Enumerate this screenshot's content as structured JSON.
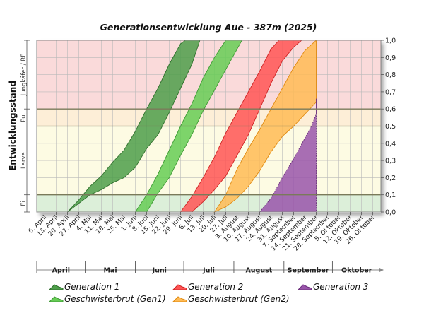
{
  "chart_data": {
    "type": "area",
    "title": "Generationsentwicklung Aue - 387m (2025)",
    "ylabel": "Entwicklungsstand",
    "ylim": [
      0,
      1
    ],
    "y_ticks": [
      "0,0",
      "0,1",
      "0,2",
      "0,3",
      "0,4",
      "0,5",
      "0,6",
      "0,7",
      "0,8",
      "0,9",
      "1,0"
    ],
    "stages": [
      {
        "label": "Ei",
        "from": 0,
        "to": 0.1,
        "color": "#dcefd9"
      },
      {
        "label": "Larve",
        "from": 0.1,
        "to": 0.5,
        "color": "#fdfbe3"
      },
      {
        "label": "Pu.",
        "from": 0.5,
        "to": 0.6,
        "color": "#fdeed7"
      },
      {
        "label": "Jungkäfer / RF",
        "from": 0.6,
        "to": 1.0,
        "color": "#fadada"
      }
    ],
    "x_range": [
      "2025-04-01",
      "2025-10-31"
    ],
    "x_ticks": [
      {
        "date": "2025-04-06",
        "label": "6. April"
      },
      {
        "date": "2025-04-13",
        "label": "13. April"
      },
      {
        "date": "2025-04-20",
        "label": "20. April"
      },
      {
        "date": "2025-04-27",
        "label": "27. April"
      },
      {
        "date": "2025-05-04",
        "label": "4. Mai"
      },
      {
        "date": "2025-05-11",
        "label": "11. Mai"
      },
      {
        "date": "2025-05-18",
        "label": "18. Mai"
      },
      {
        "date": "2025-05-25",
        "label": "25. Mai"
      },
      {
        "date": "2025-06-01",
        "label": "1. Juni"
      },
      {
        "date": "2025-06-08",
        "label": "8. Juni"
      },
      {
        "date": "2025-06-15",
        "label": "15. Juni"
      },
      {
        "date": "2025-06-22",
        "label": "22. Juni"
      },
      {
        "date": "2025-06-29",
        "label": "29. Juni"
      },
      {
        "date": "2025-07-06",
        "label": "6. Juli"
      },
      {
        "date": "2025-07-13",
        "label": "13. Juli"
      },
      {
        "date": "2025-07-20",
        "label": "20. Juli"
      },
      {
        "date": "2025-07-27",
        "label": "27. Juli"
      },
      {
        "date": "2025-08-03",
        "label": "3. August"
      },
      {
        "date": "2025-08-10",
        "label": "10. August"
      },
      {
        "date": "2025-08-17",
        "label": "17. August"
      },
      {
        "date": "2025-08-24",
        "label": "24. August"
      },
      {
        "date": "2025-08-31",
        "label": "31. August"
      },
      {
        "date": "2025-09-07",
        "label": "7. September"
      },
      {
        "date": "2025-09-14",
        "label": "14. September"
      },
      {
        "date": "2025-09-21",
        "label": "21. September"
      },
      {
        "date": "2025-09-28",
        "label": "28. September"
      },
      {
        "date": "2025-10-05",
        "label": "5. Oktober"
      },
      {
        "date": "2025-10-12",
        "label": "12. Oktober"
      },
      {
        "date": "2025-10-19",
        "label": "19. Oktober"
      },
      {
        "date": "2025-10-26",
        "label": "26. Oktober"
      }
    ],
    "months": [
      {
        "label": "April",
        "start": "2025-04-01",
        "end": "2025-05-01"
      },
      {
        "label": "Mai",
        "start": "2025-05-01",
        "end": "2025-06-01"
      },
      {
        "label": "Juni",
        "start": "2025-06-01",
        "end": "2025-07-01"
      },
      {
        "label": "Juli",
        "start": "2025-07-01",
        "end": "2025-08-01"
      },
      {
        "label": "August",
        "start": "2025-08-01",
        "end": "2025-09-01"
      },
      {
        "label": "September",
        "start": "2025-09-01",
        "end": "2025-10-01"
      },
      {
        "label": "Oktober",
        "start": "2025-10-01",
        "end": "2025-11-01"
      }
    ],
    "series": [
      {
        "name": "Generation 1",
        "color": "#4e9e4a",
        "stroke": "#2f6e2c",
        "lower": [
          [
            "2025-04-20",
            0
          ],
          [
            "2025-04-27",
            0.05
          ],
          [
            "2025-05-04",
            0.1
          ],
          [
            "2025-05-11",
            0.13
          ],
          [
            "2025-05-18",
            0.17
          ],
          [
            "2025-05-25",
            0.2
          ],
          [
            "2025-06-01",
            0.26
          ],
          [
            "2025-06-08",
            0.37
          ],
          [
            "2025-06-15",
            0.45
          ],
          [
            "2025-06-22",
            0.58
          ],
          [
            "2025-06-29",
            0.72
          ],
          [
            "2025-07-06",
            0.86
          ],
          [
            "2025-07-11",
            1.0
          ]
        ],
        "upper": [
          [
            "2025-04-20",
            0
          ],
          [
            "2025-04-27",
            0.07
          ],
          [
            "2025-05-04",
            0.15
          ],
          [
            "2025-05-11",
            0.21
          ],
          [
            "2025-05-18",
            0.29
          ],
          [
            "2025-05-25",
            0.36
          ],
          [
            "2025-06-01",
            0.47
          ],
          [
            "2025-06-08",
            0.6
          ],
          [
            "2025-06-15",
            0.72
          ],
          [
            "2025-06-22",
            0.86
          ],
          [
            "2025-06-29",
            0.98
          ],
          [
            "2025-07-02",
            1.0
          ]
        ]
      },
      {
        "name": "Geschwisterbrut (Gen1)",
        "color": "#66cc55",
        "stroke": "#3f9a35",
        "lower": [
          [
            "2025-06-08",
            0
          ],
          [
            "2025-06-15",
            0.11
          ],
          [
            "2025-06-22",
            0.2
          ],
          [
            "2025-06-29",
            0.33
          ],
          [
            "2025-07-06",
            0.45
          ],
          [
            "2025-07-13",
            0.59
          ],
          [
            "2025-07-20",
            0.71
          ],
          [
            "2025-07-27",
            0.83
          ],
          [
            "2025-08-06",
            1.0
          ]
        ],
        "upper": [
          [
            "2025-06-01",
            0
          ],
          [
            "2025-06-08",
            0.1
          ],
          [
            "2025-06-15",
            0.22
          ],
          [
            "2025-06-22",
            0.36
          ],
          [
            "2025-06-29",
            0.5
          ],
          [
            "2025-07-06",
            0.63
          ],
          [
            "2025-07-13",
            0.78
          ],
          [
            "2025-07-20",
            0.9
          ],
          [
            "2025-07-27",
            1.0
          ]
        ]
      },
      {
        "name": "Generation 2",
        "color": "#ff5555",
        "stroke": "#cc2222",
        "lower": [
          [
            "2025-07-06",
            0
          ],
          [
            "2025-07-13",
            0.06
          ],
          [
            "2025-07-20",
            0.13
          ],
          [
            "2025-07-27",
            0.21
          ],
          [
            "2025-08-03",
            0.33
          ],
          [
            "2025-08-10",
            0.45
          ],
          [
            "2025-08-17",
            0.6
          ],
          [
            "2025-08-24",
            0.75
          ],
          [
            "2025-08-31",
            0.88
          ],
          [
            "2025-09-07",
            0.96
          ],
          [
            "2025-09-12",
            1.0
          ]
        ],
        "upper": [
          [
            "2025-06-29",
            0
          ],
          [
            "2025-07-06",
            0.09
          ],
          [
            "2025-07-13",
            0.2
          ],
          [
            "2025-07-20",
            0.32
          ],
          [
            "2025-07-27",
            0.46
          ],
          [
            "2025-08-03",
            0.58
          ],
          [
            "2025-08-10",
            0.7
          ],
          [
            "2025-08-17",
            0.82
          ],
          [
            "2025-08-24",
            0.95
          ],
          [
            "2025-08-29",
            1.0
          ]
        ]
      },
      {
        "name": "Geschwisterbrut (Gen2)",
        "color": "#ffbb55",
        "stroke": "#e08a10",
        "lower": [
          [
            "2025-07-20",
            0
          ],
          [
            "2025-07-27",
            0.03
          ],
          [
            "2025-08-03",
            0.08
          ],
          [
            "2025-08-10",
            0.15
          ],
          [
            "2025-08-17",
            0.24
          ],
          [
            "2025-08-24",
            0.35
          ],
          [
            "2025-08-31",
            0.44
          ],
          [
            "2025-09-07",
            0.5
          ],
          [
            "2025-09-14",
            0.57
          ],
          [
            "2025-09-21",
            0.64
          ]
        ],
        "upper": [
          [
            "2025-07-20",
            0
          ],
          [
            "2025-07-27",
            0.1
          ],
          [
            "2025-08-03",
            0.25
          ],
          [
            "2025-08-10",
            0.37
          ],
          [
            "2025-08-17",
            0.48
          ],
          [
            "2025-08-24",
            0.6
          ],
          [
            "2025-08-31",
            0.72
          ],
          [
            "2025-09-07",
            0.84
          ],
          [
            "2025-09-14",
            0.94
          ],
          [
            "2025-09-21",
            1.0
          ]
        ]
      },
      {
        "name": "Generation 3",
        "color": "#9955aa",
        "stroke": "#6a2e7a",
        "lower": [
          [
            "2025-08-17",
            0
          ],
          [
            "2025-09-21",
            0
          ]
        ],
        "upper": [
          [
            "2025-08-17",
            0
          ],
          [
            "2025-08-24",
            0.08
          ],
          [
            "2025-08-31",
            0.2
          ],
          [
            "2025-09-07",
            0.31
          ],
          [
            "2025-09-14",
            0.43
          ],
          [
            "2025-09-18",
            0.5
          ],
          [
            "2025-09-21",
            0.57
          ],
          [
            "2025-09-21",
            0.66
          ]
        ]
      }
    ],
    "legend": [
      {
        "label": "Generation 1",
        "color": "#4e9e4a"
      },
      {
        "label": "Generation 2",
        "color": "#ff5555"
      },
      {
        "label": "Generation 3",
        "color": "#9955aa"
      },
      {
        "label": "Geschwisterbrut (Gen1)",
        "color": "#66cc55"
      },
      {
        "label": "Geschwisterbrut (Gen2)",
        "color": "#ffbb55"
      }
    ],
    "grid": true,
    "legend_placement": "bottom"
  }
}
